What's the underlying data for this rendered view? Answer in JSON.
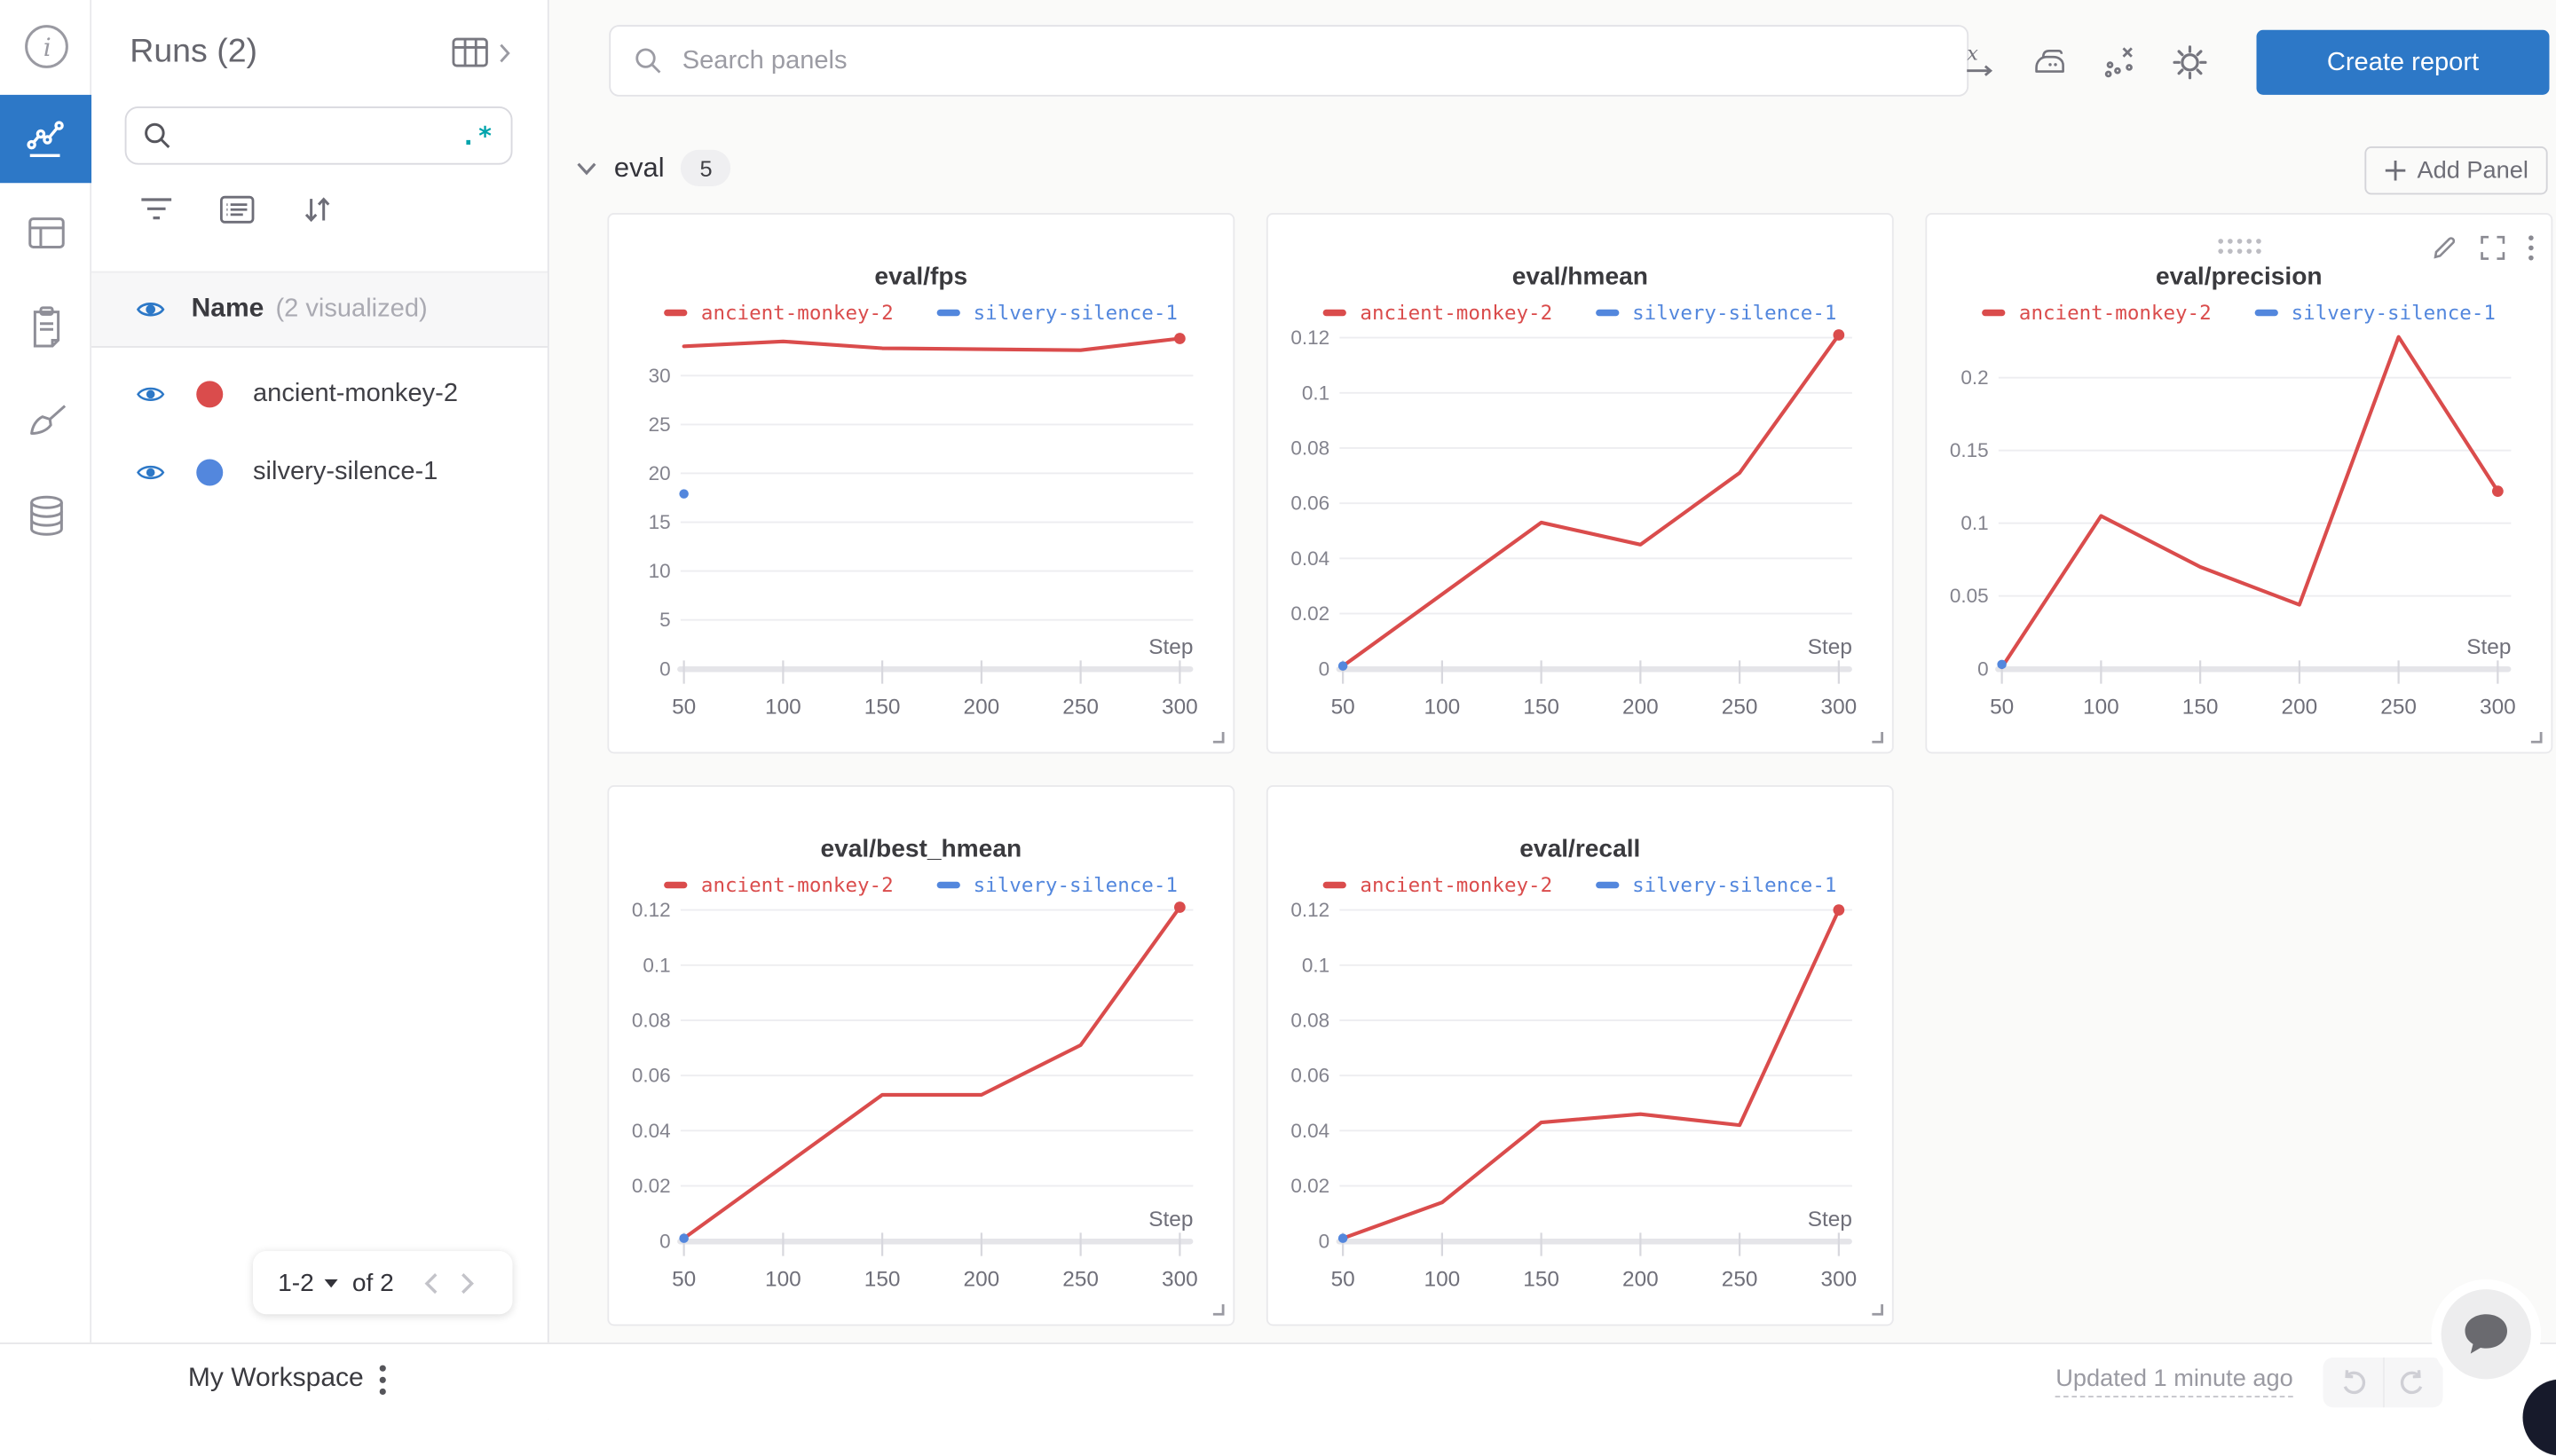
{
  "colors": {
    "accent_blue": "#2d78c7",
    "run_red": "#da4c4c",
    "run_blue": "#5387dd",
    "teal": "#00a4ac"
  },
  "rail": {
    "items": [
      "info",
      "workspace-charts",
      "table",
      "reports",
      "sweeps",
      "artifacts"
    ]
  },
  "runs_panel": {
    "title": "Runs (2)",
    "search_value": "",
    "regex_label": ".*",
    "header": {
      "name_label": "Name",
      "visualized_label": "(2 visualized)"
    },
    "runs": [
      {
        "name": "ancient-monkey-2",
        "color": "#da4c4c"
      },
      {
        "name": "silvery-silence-1",
        "color": "#5387dd"
      }
    ],
    "pagination": {
      "range": "1-2",
      "of": "of 2"
    }
  },
  "topbar": {
    "search_placeholder": "Search panels",
    "create_report_label": "Create report",
    "icons": [
      "x-axis",
      "smoothing-iron",
      "outliers-scatter",
      "settings-gear"
    ]
  },
  "section": {
    "name": "eval",
    "count": "5",
    "add_panel_label": "Add Panel"
  },
  "chart_data": [
    {
      "type": "line",
      "title": "eval/fps",
      "xlabel": "Step",
      "grid": true,
      "legend_position": "top",
      "x": [
        50,
        100,
        150,
        200,
        250,
        300
      ],
      "xtick_labels": [
        "50",
        "100",
        "150",
        "200",
        "250",
        "300"
      ],
      "yticks": [
        0,
        5,
        10,
        15,
        20,
        25,
        30
      ],
      "ytick_labels": [
        "0",
        "5",
        "10",
        "15",
        "20",
        "25",
        "30"
      ],
      "ylim": [
        0,
        34.9
      ],
      "series": [
        {
          "name": "ancient-monkey-2",
          "color": "#da4c4c",
          "values": [
            33.0,
            33.5,
            32.8,
            32.7,
            32.6,
            33.8
          ],
          "end_dot": true
        },
        {
          "name": "silvery-silence-1",
          "color": "#5387dd",
          "values": [
            17.9,
            null,
            null,
            null,
            null,
            null
          ]
        }
      ]
    },
    {
      "type": "line",
      "title": "eval/hmean",
      "xlabel": "Step",
      "grid": true,
      "legend_position": "top",
      "x": [
        50,
        100,
        150,
        200,
        250,
        300
      ],
      "xtick_labels": [
        "50",
        "100",
        "150",
        "200",
        "250",
        "300"
      ],
      "yticks": [
        0,
        0.02,
        0.04,
        0.06,
        0.08,
        0.1,
        0.12
      ],
      "ytick_labels": [
        "0",
        "0.02",
        "0.04",
        "0.06",
        "0.08",
        "0.1",
        "0.12"
      ],
      "ylim": [
        0,
        0.1236
      ],
      "series": [
        {
          "name": "ancient-monkey-2",
          "color": "#da4c4c",
          "values": [
            0.001,
            0.027,
            0.053,
            0.045,
            0.071,
            0.121
          ],
          "end_dot": true
        },
        {
          "name": "silvery-silence-1",
          "color": "#5387dd",
          "values": [
            0.001,
            null,
            null,
            null,
            null,
            null
          ]
        }
      ]
    },
    {
      "type": "line",
      "title": "eval/precision",
      "xlabel": "Step",
      "grid": true,
      "legend_position": "top",
      "hover": true,
      "x": [
        50,
        100,
        150,
        200,
        250,
        300
      ],
      "xtick_labels": [
        "50",
        "100",
        "150",
        "200",
        "250",
        "300"
      ],
      "yticks": [
        0,
        0.05,
        0.1,
        0.15,
        0.2
      ],
      "ytick_labels": [
        "0",
        "0.05",
        "0.1",
        "0.15",
        "0.2"
      ],
      "ylim": [
        0,
        0.2343
      ],
      "series": [
        {
          "name": "ancient-monkey-2",
          "color": "#da4c4c",
          "values": [
            0.001,
            0.105,
            0.07,
            0.044,
            0.228,
            0.122
          ],
          "end_dot": true
        },
        {
          "name": "silvery-silence-1",
          "color": "#5387dd",
          "values": [
            0.003,
            null,
            null,
            null,
            null,
            null
          ]
        }
      ]
    },
    {
      "type": "line",
      "title": "eval/best_hmean",
      "xlabel": "Step",
      "grid": true,
      "legend_position": "top",
      "x": [
        50,
        100,
        150,
        200,
        250,
        300
      ],
      "xtick_labels": [
        "50",
        "100",
        "150",
        "200",
        "250",
        "300"
      ],
      "yticks": [
        0,
        0.02,
        0.04,
        0.06,
        0.08,
        0.1,
        0.12
      ],
      "ytick_labels": [
        "0",
        "0.02",
        "0.04",
        "0.06",
        "0.08",
        "0.1",
        "0.12"
      ],
      "ylim": [
        0,
        0.1236
      ],
      "series": [
        {
          "name": "ancient-monkey-2",
          "color": "#da4c4c",
          "values": [
            0.001,
            0.027,
            0.053,
            0.053,
            0.071,
            0.121
          ],
          "end_dot": true
        },
        {
          "name": "silvery-silence-1",
          "color": "#5387dd",
          "values": [
            0.001,
            null,
            null,
            null,
            null,
            null
          ]
        }
      ]
    },
    {
      "type": "line",
      "title": "eval/recall",
      "xlabel": "Step",
      "grid": true,
      "legend_position": "top",
      "x": [
        50,
        100,
        150,
        200,
        250,
        300
      ],
      "xtick_labels": [
        "50",
        "100",
        "150",
        "200",
        "250",
        "300"
      ],
      "yticks": [
        0,
        0.02,
        0.04,
        0.06,
        0.08,
        0.1,
        0.12
      ],
      "ytick_labels": [
        "0",
        "0.02",
        "0.04",
        "0.06",
        "0.08",
        "0.1",
        "0.12"
      ],
      "ylim": [
        0,
        0.1236
      ],
      "series": [
        {
          "name": "ancient-monkey-2",
          "color": "#da4c4c",
          "values": [
            0.001,
            0.014,
            0.043,
            0.046,
            0.042,
            0.12
          ],
          "end_dot": true
        },
        {
          "name": "silvery-silence-1",
          "color": "#5387dd",
          "values": [
            0.001,
            null,
            null,
            null,
            null,
            null
          ]
        }
      ]
    }
  ],
  "footer": {
    "workspace_label": "My Workspace",
    "updated_label": "Updated 1 minute ago"
  }
}
